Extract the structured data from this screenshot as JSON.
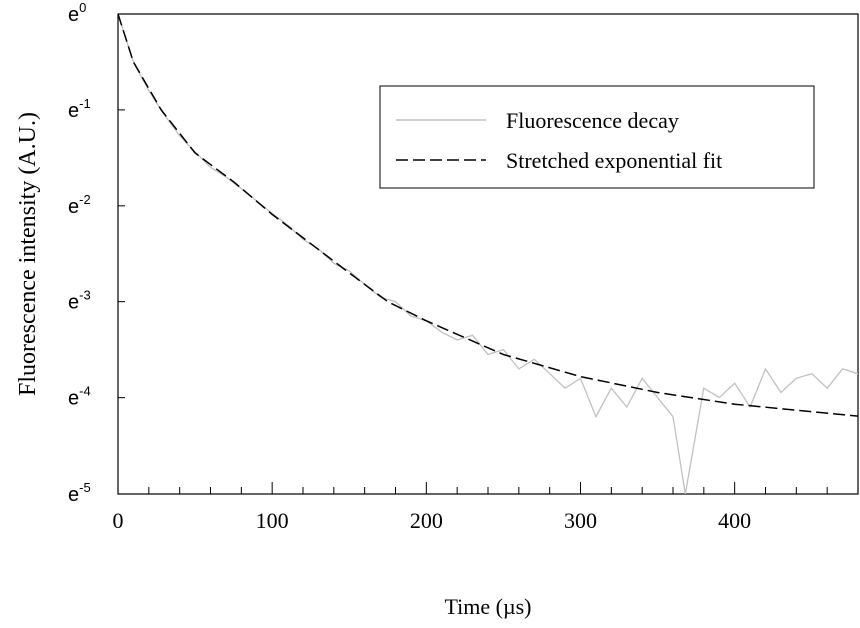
{
  "chart_data": {
    "type": "line",
    "xlabel": "Time (µs)",
    "ylabel": "Fluorescence intensity (A.U.)",
    "xlim": [
      0,
      480
    ],
    "xticks": [
      0,
      100,
      200,
      300,
      400
    ],
    "x_minor_ticks": [
      20,
      40,
      60,
      80,
      120,
      140,
      160,
      180,
      220,
      240,
      260,
      280,
      320,
      340,
      360,
      380,
      420,
      440,
      460
    ],
    "ylim": [
      0.0067,
      1
    ],
    "yscale": "log",
    "yticks": [
      {
        "value": 1,
        "label": [
          "e",
          "0"
        ]
      },
      {
        "value": 0.3679,
        "label": [
          "e",
          "-1"
        ]
      },
      {
        "value": 0.1353,
        "label": [
          "e",
          "-2"
        ]
      },
      {
        "value": 0.0498,
        "label": [
          "e",
          "-3"
        ]
      },
      {
        "value": 0.0183,
        "label": [
          "e",
          "-4"
        ]
      },
      {
        "value": 0.0067,
        "label": [
          "e",
          "-5"
        ]
      }
    ],
    "legend_loc": "upper right",
    "series": [
      {
        "name": "Fluorescence decay",
        "color": "#c0c0c0",
        "dash": "solid",
        "x": [
          0,
          10,
          20,
          30,
          40,
          50,
          60,
          70,
          80,
          90,
          100,
          110,
          120,
          130,
          140,
          150,
          160,
          170,
          180,
          190,
          200,
          210,
          220,
          230,
          240,
          250,
          260,
          270,
          280,
          290,
          300,
          310,
          320,
          330,
          340,
          350,
          360,
          368,
          380,
          390,
          400,
          410,
          420,
          430,
          440,
          450,
          460,
          470,
          480
        ],
        "values": [
          1,
          0.6065,
          0.4493,
          0.3499,
          0.2808,
          0.2369,
          0.2019,
          0.1827,
          0.162,
          0.1423,
          0.1249,
          0.1108,
          0.0954,
          0.0863,
          0.0743,
          0.0686,
          0.0596,
          0.0523,
          0.0498,
          0.0429,
          0.0408,
          0.0362,
          0.0334,
          0.0351,
          0.0287,
          0.0302,
          0.0247,
          0.0273,
          0.0235,
          0.0202,
          0.0224,
          0.015,
          0.0202,
          0.0166,
          0.0224,
          0.0183,
          0.015,
          0.0067,
          0.0202,
          0.0183,
          0.0213,
          0.0166,
          0.0247,
          0.0193,
          0.0224,
          0.0235,
          0.0202,
          0.0247,
          0.0235
        ]
      },
      {
        "name": "Stretched exponential fit",
        "color": "#000000",
        "dash": "dashed",
        "x": [
          0,
          10,
          28,
          50,
          75,
          100,
          150,
          175,
          200,
          250,
          300,
          350,
          400,
          450,
          480
        ],
        "values": [
          1,
          0.6065,
          0.3679,
          0.2346,
          0.1738,
          0.1237,
          0.0672,
          0.0498,
          0.0408,
          0.0287,
          0.0228,
          0.0193,
          0.0171,
          0.0158,
          0.0151
        ]
      }
    ]
  }
}
